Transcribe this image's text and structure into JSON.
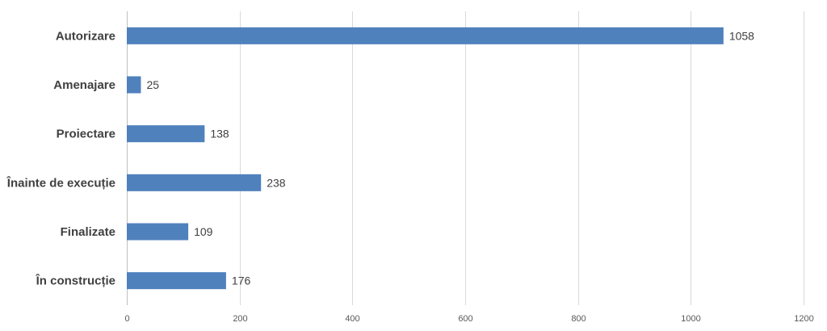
{
  "chart_data": {
    "type": "bar",
    "orientation": "horizontal",
    "categories": [
      "Autorizare",
      "Amenajare",
      "Proiectare",
      "Înainte de execuție",
      "Finalizate",
      "În construcție"
    ],
    "values": [
      1058,
      25,
      138,
      238,
      109,
      176
    ],
    "xlim": [
      0,
      1200
    ],
    "x_ticks": [
      0,
      200,
      400,
      600,
      800,
      1000,
      1200
    ],
    "grid": true,
    "bar_color": "#4f81bd",
    "data_labels": true
  }
}
